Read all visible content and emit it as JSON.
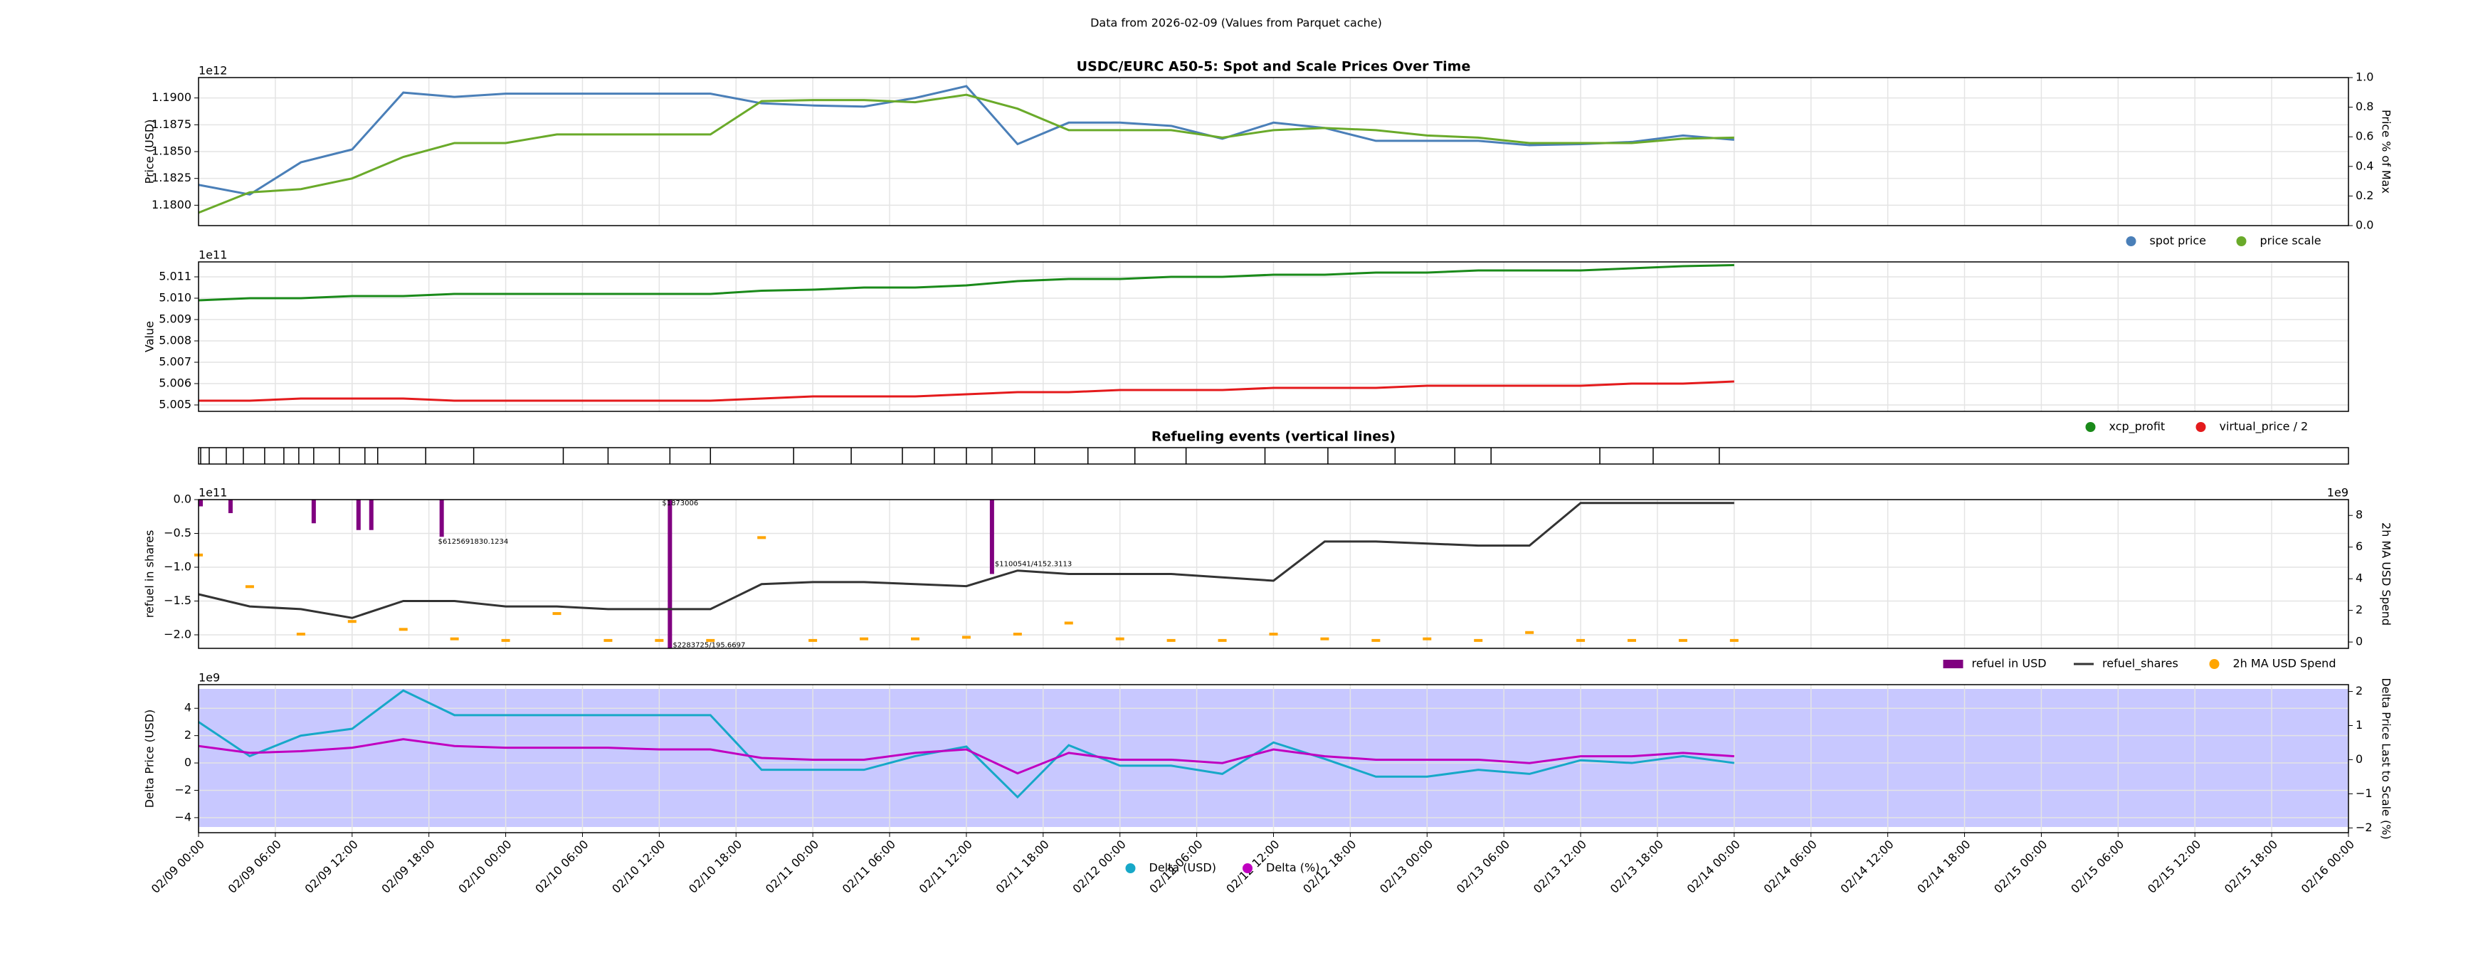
{
  "suptitle": "Data from 2026-02-09 (Values from Parquet cache)",
  "chart_data": [
    {
      "type": "line",
      "title": "USDC/EURC A50-5: Spot and Scale Prices Over Time",
      "ylabel": "Price (USD)",
      "y_offset": "1e12",
      "y2label": "Price % of Max",
      "x": [
        "02/09 00:00",
        "02/09 04:00",
        "02/09 08:00",
        "02/09 12:00",
        "02/09 16:00",
        "02/09 20:00",
        "02/10 00:00",
        "02/10 04:00",
        "02/10 08:00",
        "02/10 12:00",
        "02/10 16:00",
        "02/10 20:00",
        "02/11 00:00",
        "02/11 04:00",
        "02/11 08:00",
        "02/11 12:00",
        "02/11 16:00",
        "02/11 20:00",
        "02/12 00:00",
        "02/12 04:00",
        "02/12 08:00",
        "02/12 12:00",
        "02/12 16:00",
        "02/12 20:00",
        "02/13 00:00",
        "02/13 04:00",
        "02/13 08:00",
        "02/13 12:00",
        "02/13 16:00",
        "02/13 20:00",
        "02/14 00:00"
      ],
      "xlim": [
        "02/09 00:00",
        "02/16 00:00"
      ],
      "ylim": [
        1.1781,
        1.1919
      ],
      "yticks": [
        {
          "value": 1.18,
          "label": "1.1800"
        },
        1.1825,
        {
          "value": 1.185,
          "label": "1.1850"
        },
        1.1875,
        {
          "value": 1.19,
          "label": "1.1900"
        }
      ],
      "y2lim": [
        0,
        1
      ],
      "y2ticks": [
        {
          "value": 0,
          "label": "0.0"
        },
        0.2,
        0.4,
        0.6,
        0.8,
        {
          "value": 1,
          "label": "1.0"
        }
      ],
      "grid": true,
      "legend": "below right",
      "series": [
        {
          "name": "spot price",
          "color": "#4a7fb8",
          "marker": true,
          "values": [
            1.1819,
            1.181,
            1.184,
            1.1852,
            1.1905,
            1.1901,
            1.1904,
            1.1904,
            1.1904,
            1.1904,
            1.1904,
            1.1895,
            1.1893,
            1.1892,
            1.19,
            1.1911,
            1.1857,
            1.1877,
            1.1877,
            1.1874,
            1.1862,
            1.1877,
            1.1872,
            1.186,
            1.186,
            1.186,
            1.1856,
            1.1857,
            1.1859,
            1.1865,
            1.1861
          ]
        },
        {
          "name": "price scale",
          "color": "#6aaa2a",
          "marker": true,
          "values": [
            1.1793,
            1.1812,
            1.1815,
            1.1825,
            1.1845,
            1.1858,
            1.1858,
            1.1866,
            1.1866,
            1.1866,
            1.1866,
            1.1897,
            1.1898,
            1.1898,
            1.1896,
            1.1903,
            1.189,
            1.187,
            1.187,
            1.187,
            1.1863,
            1.187,
            1.1872,
            1.187,
            1.1865,
            1.1863,
            1.1858,
            1.1858,
            1.1858,
            1.1862,
            1.1863
          ]
        }
      ]
    },
    {
      "type": "line",
      "ylabel": "Value",
      "y_offset": "1e11",
      "x": [
        "02/09 00:00",
        "02/09 04:00",
        "02/09 08:00",
        "02/09 12:00",
        "02/09 16:00",
        "02/09 20:00",
        "02/10 00:00",
        "02/10 04:00",
        "02/10 08:00",
        "02/10 12:00",
        "02/10 16:00",
        "02/10 20:00",
        "02/11 00:00",
        "02/11 04:00",
        "02/11 08:00",
        "02/11 12:00",
        "02/11 16:00",
        "02/11 20:00",
        "02/12 00:00",
        "02/12 04:00",
        "02/12 08:00",
        "02/12 12:00",
        "02/12 16:00",
        "02/12 20:00",
        "02/13 00:00",
        "02/13 04:00",
        "02/13 08:00",
        "02/13 12:00",
        "02/13 16:00",
        "02/13 20:00",
        "02/14 00:00"
      ],
      "xlim": [
        "02/09 00:00",
        "02/16 00:00"
      ],
      "ylim": [
        5.0047,
        5.0117
      ],
      "yticks": [
        5.005,
        5.006,
        5.007,
        5.008,
        5.009,
        {
          "value": 5.01,
          "label": "5.010"
        },
        5.011
      ],
      "grid": true,
      "legend": "below right",
      "series": [
        {
          "name": "xcp_profit",
          "color": "#1a8a1a",
          "marker": true,
          "values": [
            5.0099,
            5.01,
            5.01,
            5.0101,
            5.0101,
            5.0102,
            5.0102,
            5.0102,
            5.0102,
            5.0102,
            5.0102,
            5.01035,
            5.0104,
            5.0105,
            5.0105,
            5.0106,
            5.0108,
            5.0109,
            5.0109,
            5.011,
            5.011,
            5.0111,
            5.0111,
            5.0112,
            5.0112,
            5.0113,
            5.0113,
            5.0113,
            5.0114,
            5.0115,
            5.01155
          ]
        },
        {
          "name": "virtual_price / 2",
          "color": "#e41a1c",
          "marker": true,
          "values": [
            5.0052,
            5.0052,
            5.0053,
            5.0053,
            5.0053,
            5.0052,
            5.0052,
            5.0052,
            5.0052,
            5.0052,
            5.0052,
            5.0053,
            5.0054,
            5.0054,
            5.0054,
            5.0055,
            5.0056,
            5.0056,
            5.0057,
            5.0057,
            5.0057,
            5.0058,
            5.0058,
            5.0058,
            5.0059,
            5.0059,
            5.0059,
            5.0059,
            5.006,
            5.006,
            5.0061
          ]
        }
      ]
    },
    {
      "type": "events",
      "title": "Refueling events (vertical lines)",
      "xlim": [
        "02/09 00:00",
        "02/16 00:00"
      ],
      "x": [
        "02/09 00:10",
        "02/09 00:50",
        "02/09 02:10",
        "02/09 03:30",
        "02/09 05:10",
        "02/09 06:40",
        "02/09 07:50",
        "02/09 09:00",
        "02/09 11:00",
        "02/09 13:00",
        "02/09 14:00",
        "02/09 17:45",
        "02/09 21:30",
        "02/10 04:30",
        "02/10 08:00",
        "02/10 12:50",
        "02/10 16:00",
        "02/10 22:30",
        "02/11 03:00",
        "02/11 07:00",
        "02/11 09:30",
        "02/11 12:00",
        "02/11 14:00",
        "02/11 17:20",
        "02/11 21:30",
        "02/12 01:10",
        "02/12 05:10",
        "02/12 11:20",
        "02/12 16:15",
        "02/12 21:30",
        "02/13 02:10",
        "02/13 05:00",
        "02/13 13:30",
        "02/13 17:40",
        "02/13 22:50"
      ]
    },
    {
      "type": "line",
      "ylabel": "refuel in shares",
      "y_offset": "1e11",
      "y2label": "2h MA USD Spend",
      "y2_offset": "1e9",
      "y2label_color": "#ffa500",
      "x": [
        "02/09 00:00",
        "02/09 04:00",
        "02/09 08:00",
        "02/09 12:00",
        "02/09 16:00",
        "02/09 20:00",
        "02/10 00:00",
        "02/10 04:00",
        "02/10 08:00",
        "02/10 12:00",
        "02/10 16:00",
        "02/10 20:00",
        "02/11 00:00",
        "02/11 04:00",
        "02/11 08:00",
        "02/11 12:00",
        "02/11 16:00",
        "02/11 20:00",
        "02/12 00:00",
        "02/12 04:00",
        "02/12 08:00",
        "02/12 12:00",
        "02/12 16:00",
        "02/12 20:00",
        "02/13 00:00",
        "02/13 04:00",
        "02/13 08:00",
        "02/13 12:00",
        "02/13 16:00",
        "02/13 20:00",
        "02/14 00:00"
      ],
      "xlim": [
        "02/09 00:00",
        "02/16 00:00"
      ],
      "ylim": [
        -2.2,
        0
      ],
      "yticks": [
        {
          "value": -2,
          "label": "−2.0"
        },
        {
          "value": -1.5,
          "label": "−1.5"
        },
        {
          "value": -1,
          "label": "−1.0"
        },
        {
          "value": -0.5,
          "label": "−0.5"
        },
        {
          "value": 0,
          "label": "0.0"
        }
      ],
      "y2lim": [
        -0.4,
        9
      ],
      "y2ticks": [
        0,
        2,
        4,
        6,
        8
      ],
      "grid": true,
      "legend": "below right",
      "series": [
        {
          "name": "refuel in USD",
          "type": "bar",
          "color": "#800080",
          "x": [
            "02/09 00:10",
            "02/09 02:30",
            "02/09 09:00",
            "02/09 12:30",
            "02/09 13:30",
            "02/09 19:00",
            "02/10 12:50",
            "02/11 14:00"
          ],
          "values": [
            -0.1,
            -0.2,
            -0.35,
            -0.45,
            -0.45,
            -0.55,
            -2.2,
            -1.1
          ]
        },
        {
          "name": "refuel_shares",
          "color": "#333333",
          "values": [
            -1.4,
            -1.58,
            -1.62,
            -1.75,
            -1.5,
            -1.5,
            -1.58,
            -1.58,
            -1.62,
            -1.62,
            -1.62,
            -1.25,
            -1.22,
            -1.22,
            -1.25,
            -1.28,
            -1.05,
            -1.1,
            -1.1,
            -1.1,
            -1.15,
            -1.2,
            -0.62,
            -0.62,
            -0.65,
            -0.68,
            -0.68,
            -0.05,
            -0.05,
            -0.05,
            -0.05
          ]
        },
        {
          "name": "2h MA USD Spend",
          "type": "scatter",
          "axis": "y2",
          "color": "#ffa500",
          "values": [
            5.5,
            3.5,
            0.5,
            1.3,
            0.8,
            0.2,
            0.1,
            1.8,
            0.1,
            0.1,
            0.1,
            6.6,
            0.1,
            0.2,
            0.2,
            0.3,
            0.5,
            1.2,
            0.2,
            0.1,
            0.1,
            0.5,
            0.2,
            0.1,
            0.2,
            0.1,
            0.6,
            0.1,
            0.1,
            0.1,
            0.1
          ]
        }
      ],
      "annotations": [
        {
          "x": "02/10 12:50",
          "y": -2.15,
          "text": "$2283725/195.6697"
        },
        {
          "x": "02/11 14:00",
          "y": -0.95,
          "text": "$1100541/4152.3113"
        },
        {
          "x": "02/10 12:00",
          "y": -0.05,
          "text": "$1873006"
        },
        {
          "x": "02/09 18:30",
          "y": -0.62,
          "text": "$6125691830.1234"
        }
      ]
    },
    {
      "type": "line",
      "ylabel": "Delta Price (USD)",
      "y_offset": "1e9",
      "ylabel_color": "#17a8c8",
      "y2label": "Delta Price Last to Scale (%)",
      "y2label_color": "#c000c0",
      "shaded": true,
      "x": [
        "02/09 00:00",
        "02/09 04:00",
        "02/09 08:00",
        "02/09 12:00",
        "02/09 16:00",
        "02/09 20:00",
        "02/10 00:00",
        "02/10 04:00",
        "02/10 08:00",
        "02/10 12:00",
        "02/10 16:00",
        "02/10 20:00",
        "02/11 00:00",
        "02/11 04:00",
        "02/11 08:00",
        "02/11 12:00",
        "02/11 16:00",
        "02/11 20:00",
        "02/12 00:00",
        "02/12 04:00",
        "02/12 08:00",
        "02/12 12:00",
        "02/12 16:00",
        "02/12 20:00",
        "02/13 00:00",
        "02/13 04:00",
        "02/13 08:00",
        "02/13 12:00",
        "02/13 16:00",
        "02/13 20:00",
        "02/14 00:00"
      ],
      "xlim": [
        "02/09 00:00",
        "02/16 00:00"
      ],
      "xticks": [
        "02/09 00:00",
        "02/09 06:00",
        "02/09 12:00",
        "02/09 18:00",
        "02/10 00:00",
        "02/10 06:00",
        "02/10 12:00",
        "02/10 18:00",
        "02/11 00:00",
        "02/11 06:00",
        "02/11 12:00",
        "02/11 18:00",
        "02/12 00:00",
        "02/12 06:00",
        "02/12 12:00",
        "02/12 18:00",
        "02/13 00:00",
        "02/13 06:00",
        "02/13 12:00",
        "02/13 18:00",
        "02/14 00:00",
        "02/14 06:00",
        "02/14 12:00",
        "02/14 18:00",
        "02/15 00:00",
        "02/15 06:00",
        "02/15 12:00",
        "02/15 18:00",
        "02/16 00:00"
      ],
      "ylim": [
        -5.1,
        5.73
      ],
      "yticks": [
        {
          "value": -4,
          "label": "−4"
        },
        {
          "value": -2,
          "label": "−2"
        },
        0,
        2,
        4
      ],
      "y2lim": [
        -2.14,
        2.2
      ],
      "y2ticks": [
        {
          "value": -2,
          "label": "−2"
        },
        {
          "value": -1,
          "label": "−1"
        },
        0,
        1,
        2
      ],
      "grid": true,
      "legend": "below center",
      "series": [
        {
          "name": "Delta (USD)",
          "color": "#17a8c8",
          "marker": true,
          "values": [
            3.0,
            0.5,
            2.0,
            2.5,
            5.3,
            3.5,
            3.5,
            3.5,
            3.5,
            3.5,
            3.5,
            -0.5,
            -0.5,
            -0.5,
            0.5,
            1.2,
            -2.5,
            1.3,
            -0.2,
            -0.2,
            -0.8,
            1.5,
            0.3,
            -1.0,
            -1.0,
            -0.5,
            -0.8,
            0.2,
            0.0,
            0.5,
            0.0
          ]
        },
        {
          "name": "Delta (%)",
          "axis": "y2",
          "color": "#c000c0",
          "marker": true,
          "values": [
            0.4,
            0.2,
            0.25,
            0.35,
            0.6,
            0.4,
            0.35,
            0.35,
            0.35,
            0.3,
            0.3,
            0.05,
            0.0,
            0.0,
            0.2,
            0.3,
            -0.4,
            0.2,
            0.0,
            0.0,
            -0.1,
            0.3,
            0.1,
            0.0,
            0.0,
            0.0,
            -0.1,
            0.1,
            0.1,
            0.2,
            0.1
          ]
        }
      ]
    }
  ]
}
